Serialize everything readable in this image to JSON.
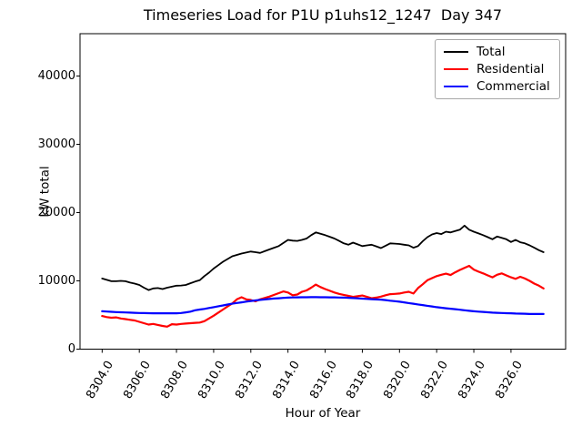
{
  "chart_data": {
    "type": "line",
    "title": "Timeseries Load for P1U p1uhs12_1247  Day 347",
    "xlabel": "Hour of Year",
    "ylabel": "kW total",
    "grid": false,
    "legend_position": "upper right",
    "xlim": [
      8302.81,
      8328.94
    ],
    "ylim": [
      0,
      46200
    ],
    "x_ticks": [
      "8304.0",
      "8306.0",
      "8308.0",
      "8310.0",
      "8312.0",
      "8314.0",
      "8316.0",
      "8318.0",
      "8320.0",
      "8322.0",
      "8324.0",
      "8326.0"
    ],
    "y_ticks": [
      "0",
      "10000",
      "20000",
      "30000",
      "40000"
    ],
    "x_start": 8304.0,
    "x_step": 0.25,
    "series": [
      {
        "name": "Total",
        "color": "#000000",
        "line_width": 1.8,
        "values": [
          10350,
          10150,
          9950,
          9950,
          10000,
          9950,
          9750,
          9600,
          9400,
          9000,
          8650,
          8900,
          8950,
          8800,
          9000,
          9150,
          9300,
          9320,
          9400,
          9650,
          9900,
          10100,
          10700,
          11200,
          11800,
          12300,
          12800,
          13200,
          13600,
          13800,
          14000,
          14150,
          14300,
          14200,
          14100,
          14350,
          14600,
          14850,
          15100,
          15550,
          16000,
          15900,
          15850,
          16000,
          16200,
          16700,
          17100,
          16900,
          16700,
          16450,
          16200,
          15850,
          15500,
          15300,
          15600,
          15350,
          15100,
          15200,
          15300,
          15050,
          14800,
          15150,
          15500,
          15450,
          15400,
          15300,
          15200,
          14850,
          15100,
          15800,
          16400,
          16800,
          17000,
          16850,
          17200,
          17100,
          17300,
          17500,
          18100,
          17500,
          17200,
          16950,
          16700,
          16400,
          16100,
          16500,
          16300,
          16100,
          15700,
          16000,
          15650,
          15500,
          15200,
          14850,
          14500,
          14200
        ]
      },
      {
        "name": "Residential",
        "color": "#ff0000",
        "line_width": 2.2,
        "values": [
          4850,
          4700,
          4600,
          4650,
          4500,
          4400,
          4300,
          4200,
          4000,
          3800,
          3600,
          3700,
          3550,
          3400,
          3300,
          3650,
          3600,
          3700,
          3750,
          3800,
          3850,
          3900,
          4100,
          4500,
          4900,
          5350,
          5800,
          6250,
          6700,
          7300,
          7600,
          7300,
          7200,
          7000,
          7300,
          7500,
          7700,
          7950,
          8200,
          8450,
          8300,
          7900,
          8000,
          8400,
          8600,
          9000,
          9450,
          9100,
          8800,
          8550,
          8300,
          8100,
          7950,
          7800,
          7650,
          7750,
          7850,
          7650,
          7450,
          7550,
          7700,
          7900,
          8050,
          8100,
          8150,
          8300,
          8400,
          8150,
          8950,
          9500,
          10100,
          10400,
          10700,
          10900,
          11050,
          10850,
          11250,
          11600,
          11900,
          12200,
          11650,
          11350,
          11100,
          10800,
          10520,
          10900,
          11100,
          10800,
          10520,
          10300,
          10600,
          10350,
          10000,
          9600,
          9300,
          8900
        ]
      },
      {
        "name": "Commercial",
        "color": "#0000ff",
        "line_width": 2.2,
        "values": [
          5550,
          5510,
          5470,
          5430,
          5400,
          5370,
          5340,
          5320,
          5300,
          5280,
          5270,
          5260,
          5250,
          5250,
          5250,
          5250,
          5250,
          5300,
          5380,
          5500,
          5700,
          5800,
          5900,
          6030,
          6150,
          6280,
          6400,
          6530,
          6650,
          6760,
          6860,
          6960,
          7050,
          7130,
          7210,
          7280,
          7350,
          7410,
          7460,
          7510,
          7550,
          7570,
          7590,
          7600,
          7600,
          7610,
          7610,
          7600,
          7600,
          7590,
          7580,
          7560,
          7550,
          7520,
          7480,
          7440,
          7400,
          7360,
          7320,
          7280,
          7250,
          7180,
          7100,
          7030,
          6950,
          6850,
          6750,
          6650,
          6550,
          6450,
          6350,
          6250,
          6150,
          6070,
          5990,
          5920,
          5850,
          5770,
          5700,
          5620,
          5550,
          5500,
          5450,
          5400,
          5350,
          5320,
          5290,
          5270,
          5250,
          5220,
          5200,
          5180,
          5150,
          5150,
          5150,
          5150
        ]
      }
    ]
  }
}
